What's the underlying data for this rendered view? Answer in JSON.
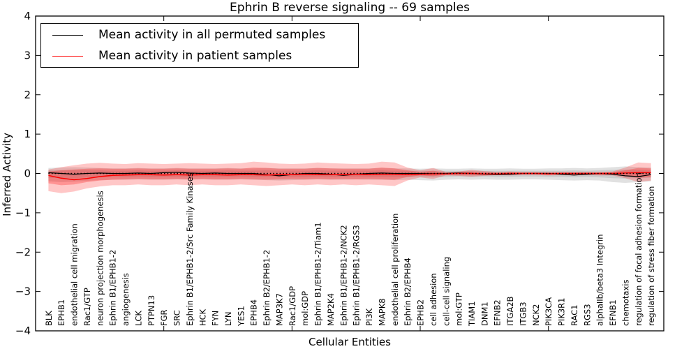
{
  "title": "Ephrin B reverse signaling -- 69 samples",
  "axes": {
    "xlabel": "Cellular Entities",
    "ylabel": "Inferred Activity",
    "ytick_labels": [
      "4",
      "3",
      "2",
      "1",
      "0",
      "−1",
      "−2",
      "−3",
      "−4"
    ],
    "ytick_values": [
      4,
      3,
      2,
      1,
      0,
      -1,
      -2,
      -3,
      -4
    ],
    "xtick_major_positions": [
      0,
      10,
      20,
      30,
      40
    ]
  },
  "legend": {
    "items": [
      {
        "label": "Mean activity in all permuted samples",
        "color": "#000000",
        "weight": 1.2
      },
      {
        "label": "Mean activity in patient samples",
        "color": "#ff0000",
        "weight": 1.5
      }
    ]
  },
  "colors": {
    "permuted_line": "#000000",
    "patient_line": "#ff0000",
    "zero_line": "#000000",
    "permuted_band": "rgba(120,120,120,0.22)",
    "permuted_band_inner": "rgba(120,120,120,0.20)",
    "patient_band": "rgba(255,0,0,0.22)",
    "patient_band_inner": "rgba(255,0,0,0.26)",
    "frame": "#000000"
  },
  "chart_data": {
    "type": "line",
    "title": "Ephrin B reverse signaling -- 69 samples",
    "xlabel": "Cellular Entities",
    "ylabel": "Inferred Activity",
    "ylim": [
      -4,
      4
    ],
    "xlim": [
      0,
      49
    ],
    "grid": false,
    "legend_position": "upper left",
    "categories": [
      "BLK",
      "EPHB1",
      "endothelial cell migration",
      "Rac1/GTP",
      "neuron projection morphogenesis",
      "Ephrin B1/EPHB1-2",
      "angiogenesis",
      "LCK",
      "PTPN13",
      "FGR",
      "SRC",
      "Ephrin B1/EPHB1-2/Src Family Kinases",
      "HCK",
      "FYN",
      "LYN",
      "YES1",
      "EPHB4",
      "Ephrin B2/EPHB1-2",
      "MAP3K7",
      "Rac1/GDP",
      "mol:GDP",
      "Ephrin B1/EPHB1-2/Tiam1",
      "MAP2K4",
      "Ephrin B1/EPHB1-2/NCK2",
      "Ephrin B1/EPHB1-2/RGS3",
      "PI3K",
      "MAPK8",
      "endothelial cell proliferation",
      "Ephrin B2/EPHB4",
      "EPHB2",
      "cell adhesion",
      "cell-cell signaling",
      "mol:GTP",
      "TIAM1",
      "DNM1",
      "EFNB2",
      "ITGA2B",
      "ITGB3",
      "NCK2",
      "PIK3CA",
      "PIK3R1",
      "RAC1",
      "RGS3",
      "alphaIIb/beta3 Integrin",
      "EFNB1",
      "chemotaxis",
      "regulation of focal adhesion formation",
      "regulation of stress fiber formation"
    ],
    "series": [
      {
        "name": "Mean activity in all permuted samples",
        "values": [
          0.02,
          0.0,
          -0.02,
          0.0,
          0.01,
          0.0,
          0.0,
          0.01,
          0.0,
          0.02,
          0.03,
          0.01,
          0.0,
          0.01,
          0.0,
          0.0,
          0.0,
          -0.03,
          -0.06,
          -0.03,
          0.0,
          0.0,
          -0.02,
          -0.05,
          -0.02,
          0.0,
          0.01,
          0.0,
          0.0,
          0.0,
          0.0,
          0.0,
          0.01,
          0.0,
          -0.02,
          -0.03,
          -0.02,
          0.0,
          0.0,
          0.0,
          -0.02,
          -0.04,
          -0.02,
          0.0,
          -0.02,
          -0.06,
          -0.08,
          -0.03
        ]
      },
      {
        "name": "Mean activity in patient samples",
        "values": [
          -0.05,
          -0.12,
          -0.16,
          -0.13,
          -0.08,
          -0.05,
          -0.04,
          -0.03,
          -0.03,
          -0.04,
          -0.03,
          -0.04,
          -0.03,
          -0.03,
          -0.04,
          -0.03,
          -0.03,
          -0.04,
          -0.03,
          -0.03,
          -0.02,
          -0.03,
          -0.03,
          -0.03,
          -0.02,
          -0.03,
          -0.02,
          -0.02,
          -0.03,
          -0.02,
          -0.01,
          -0.01,
          0.0,
          0.0,
          -0.01,
          -0.01,
          0.0,
          0.0,
          0.0,
          -0.01,
          0.0,
          0.0,
          0.0,
          0.0,
          0.0,
          0.01,
          0.02,
          0.02
        ]
      }
    ],
    "bands": {
      "permuted_outer": {
        "upper": [
          0.14,
          0.15,
          0.16,
          0.15,
          0.14,
          0.13,
          0.13,
          0.14,
          0.13,
          0.13,
          0.14,
          0.13,
          0.13,
          0.13,
          0.14,
          0.13,
          0.13,
          0.14,
          0.13,
          0.13,
          0.13,
          0.14,
          0.13,
          0.13,
          0.13,
          0.13,
          0.14,
          0.13,
          0.13,
          0.12,
          0.13,
          0.12,
          0.12,
          0.13,
          0.12,
          0.12,
          0.13,
          0.12,
          0.12,
          0.13,
          0.13,
          0.14,
          0.13,
          0.14,
          0.16,
          0.18,
          0.16,
          0.15
        ],
        "lower": [
          -0.2,
          -0.22,
          -0.21,
          -0.19,
          -0.17,
          -0.16,
          -0.16,
          -0.15,
          -0.16,
          -0.16,
          -0.15,
          -0.16,
          -0.15,
          -0.16,
          -0.16,
          -0.15,
          -0.16,
          -0.17,
          -0.18,
          -0.17,
          -0.16,
          -0.15,
          -0.16,
          -0.16,
          -0.15,
          -0.16,
          -0.16,
          -0.17,
          -0.16,
          -0.17,
          -0.18,
          -0.16,
          -0.15,
          -0.16,
          -0.15,
          -0.16,
          -0.16,
          -0.15,
          -0.15,
          -0.16,
          -0.17,
          -0.18,
          -0.17,
          -0.18,
          -0.22,
          -0.24,
          -0.22,
          -0.2
        ]
      },
      "permuted_inner": {
        "upper": [
          0.08,
          0.08,
          0.09,
          0.08,
          0.08,
          0.07,
          0.07,
          0.08,
          0.07,
          0.07,
          0.08,
          0.07,
          0.07,
          0.07,
          0.08,
          0.07,
          0.07,
          0.08,
          0.07,
          0.07,
          0.07,
          0.08,
          0.07,
          0.07,
          0.07,
          0.07,
          0.08,
          0.07,
          0.07,
          0.07,
          0.07,
          0.07,
          0.07,
          0.07,
          0.07,
          0.07,
          0.07,
          0.07,
          0.07,
          0.07,
          0.07,
          0.08,
          0.07,
          0.08,
          0.09,
          0.1,
          0.09,
          0.08
        ],
        "lower": [
          -0.11,
          -0.12,
          -0.12,
          -0.1,
          -0.09,
          -0.09,
          -0.09,
          -0.08,
          -0.09,
          -0.09,
          -0.08,
          -0.09,
          -0.08,
          -0.09,
          -0.09,
          -0.08,
          -0.09,
          -0.09,
          -0.1,
          -0.09,
          -0.09,
          -0.08,
          -0.09,
          -0.09,
          -0.08,
          -0.09,
          -0.09,
          -0.09,
          -0.09,
          -0.09,
          -0.1,
          -0.09,
          -0.08,
          -0.09,
          -0.08,
          -0.09,
          -0.09,
          -0.08,
          -0.08,
          -0.09,
          -0.09,
          -0.1,
          -0.09,
          -0.1,
          -0.12,
          -0.13,
          -0.12,
          -0.11
        ]
      },
      "patient_outer": {
        "upper": [
          0.1,
          0.16,
          0.21,
          0.25,
          0.27,
          0.25,
          0.24,
          0.26,
          0.25,
          0.24,
          0.25,
          0.26,
          0.25,
          0.24,
          0.25,
          0.26,
          0.3,
          0.28,
          0.25,
          0.24,
          0.25,
          0.28,
          0.26,
          0.25,
          0.24,
          0.25,
          0.3,
          0.28,
          0.15,
          0.08,
          0.14,
          0.04,
          0.05,
          0.09,
          0.06,
          0.04,
          0.05,
          0.04,
          0.04,
          0.04,
          0.04,
          0.04,
          0.04,
          0.04,
          0.05,
          0.15,
          0.28,
          0.26
        ],
        "lower": [
          -0.45,
          -0.5,
          -0.46,
          -0.38,
          -0.33,
          -0.3,
          -0.3,
          -0.28,
          -0.3,
          -0.3,
          -0.28,
          -0.3,
          -0.28,
          -0.3,
          -0.3,
          -0.28,
          -0.3,
          -0.32,
          -0.3,
          -0.28,
          -0.3,
          -0.28,
          -0.3,
          -0.28,
          -0.3,
          -0.28,
          -0.3,
          -0.32,
          -0.18,
          -0.1,
          -0.14,
          -0.05,
          -0.06,
          -0.08,
          -0.06,
          -0.04,
          -0.05,
          -0.04,
          -0.04,
          -0.05,
          -0.04,
          -0.05,
          -0.04,
          -0.05,
          -0.05,
          -0.12,
          -0.22,
          -0.18
        ]
      },
      "patient_inner": {
        "upper": [
          0.05,
          0.08,
          0.1,
          0.12,
          0.13,
          0.12,
          0.12,
          0.13,
          0.12,
          0.12,
          0.13,
          0.12,
          0.12,
          0.12,
          0.13,
          0.12,
          0.15,
          0.14,
          0.12,
          0.12,
          0.12,
          0.14,
          0.13,
          0.12,
          0.12,
          0.12,
          0.15,
          0.13,
          0.08,
          0.04,
          0.07,
          0.02,
          0.03,
          0.05,
          0.03,
          0.02,
          0.03,
          0.02,
          0.02,
          0.02,
          0.02,
          0.02,
          0.02,
          0.02,
          0.03,
          0.08,
          0.14,
          0.13
        ],
        "lower": [
          -0.25,
          -0.3,
          -0.28,
          -0.22,
          -0.18,
          -0.16,
          -0.15,
          -0.14,
          -0.15,
          -0.15,
          -0.14,
          -0.15,
          -0.14,
          -0.15,
          -0.15,
          -0.14,
          -0.15,
          -0.16,
          -0.15,
          -0.14,
          -0.15,
          -0.14,
          -0.15,
          -0.14,
          -0.15,
          -0.14,
          -0.15,
          -0.16,
          -0.09,
          -0.05,
          -0.07,
          -0.03,
          -0.03,
          -0.04,
          -0.03,
          -0.02,
          -0.03,
          -0.02,
          -0.02,
          -0.03,
          -0.02,
          -0.03,
          -0.02,
          -0.03,
          -0.03,
          -0.06,
          -0.11,
          -0.09
        ]
      }
    },
    "zero_reference_line": 0
  }
}
